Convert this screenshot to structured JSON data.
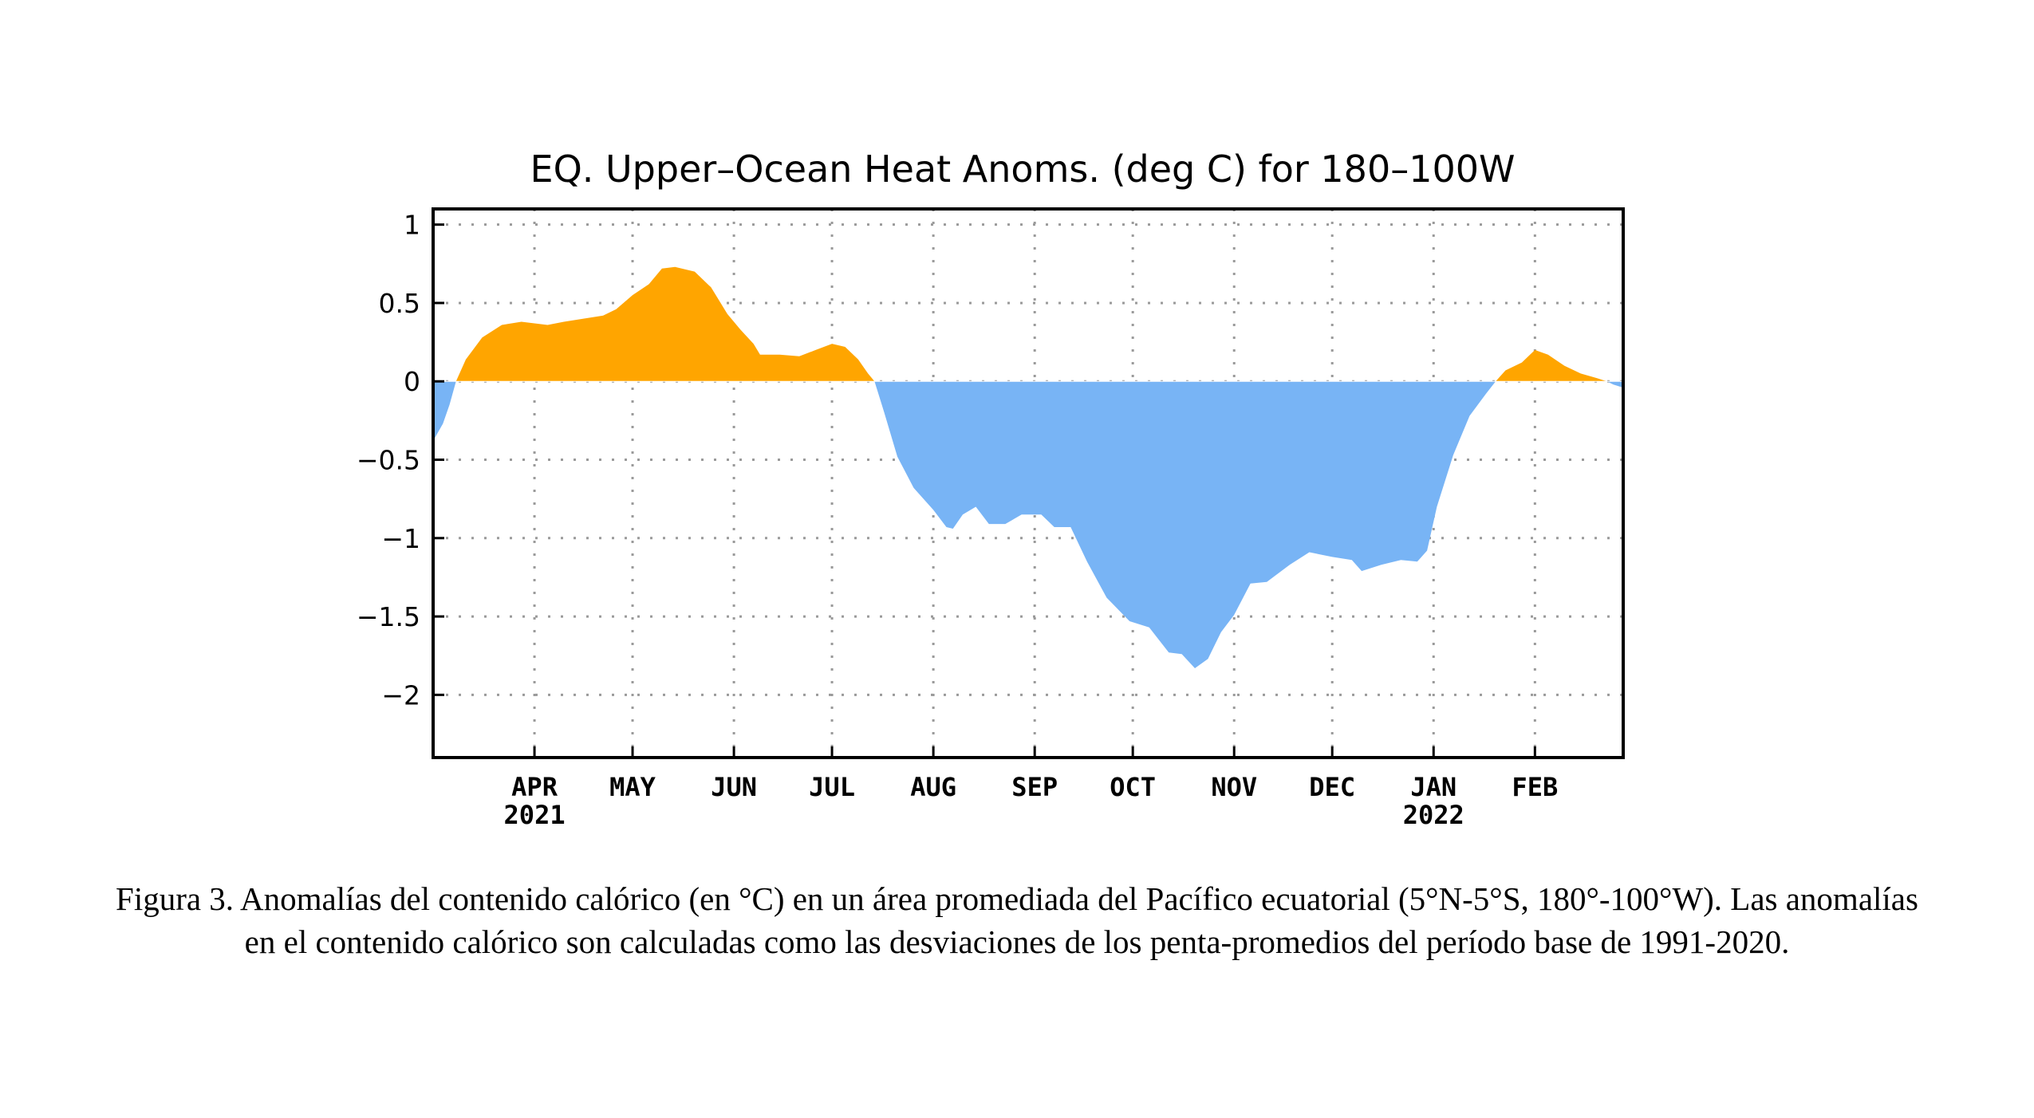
{
  "chart_data": {
    "type": "area",
    "title": "EQ. Upper–Ocean Heat Anoms. (deg C) for 180–100W",
    "xlabel": "",
    "ylabel": "",
    "ylim": [
      -2.4,
      1.1
    ],
    "y_ticks": [
      1,
      0.5,
      0,
      -0.5,
      -1,
      -1.5,
      -2
    ],
    "y_tick_labels": [
      "1",
      "0.5",
      "0",
      "−0.5",
      "−1",
      "−1.5",
      "−2"
    ],
    "xlim": [
      "2021-03-01",
      "2022-02-28"
    ],
    "x_ticks": [
      {
        "date": "2021-04-01",
        "label": "APR",
        "year": "2021"
      },
      {
        "date": "2021-05-01",
        "label": "MAY",
        "year": ""
      },
      {
        "date": "2021-06-01",
        "label": "JUN",
        "year": ""
      },
      {
        "date": "2021-07-01",
        "label": "JUL",
        "year": ""
      },
      {
        "date": "2021-08-01",
        "label": "AUG",
        "year": ""
      },
      {
        "date": "2021-09-01",
        "label": "SEP",
        "year": ""
      },
      {
        "date": "2021-10-01",
        "label": "OCT",
        "year": ""
      },
      {
        "date": "2021-11-01",
        "label": "NOV",
        "year": ""
      },
      {
        "date": "2021-12-01",
        "label": "DEC",
        "year": ""
      },
      {
        "date": "2022-01-01",
        "label": "JAN",
        "year": "2022"
      },
      {
        "date": "2022-02-01",
        "label": "FEB",
        "year": ""
      }
    ],
    "grid": true,
    "positive_color": "#ffa500",
    "negative_color": "#78b4f5",
    "points": [
      {
        "x": "2021-03-01",
        "y": -0.38
      },
      {
        "x": "2021-03-04",
        "y": -0.27
      },
      {
        "x": "2021-03-06",
        "y": -0.15
      },
      {
        "x": "2021-03-08",
        "y": 0.0
      },
      {
        "x": "2021-03-11",
        "y": 0.14
      },
      {
        "x": "2021-03-16",
        "y": 0.28
      },
      {
        "x": "2021-03-22",
        "y": 0.36
      },
      {
        "x": "2021-03-28",
        "y": 0.38
      },
      {
        "x": "2021-04-01",
        "y": 0.37
      },
      {
        "x": "2021-04-05",
        "y": 0.36
      },
      {
        "x": "2021-04-10",
        "y": 0.38
      },
      {
        "x": "2021-04-16",
        "y": 0.4
      },
      {
        "x": "2021-04-22",
        "y": 0.42
      },
      {
        "x": "2021-04-26",
        "y": 0.46
      },
      {
        "x": "2021-05-01",
        "y": 0.55
      },
      {
        "x": "2021-05-06",
        "y": 0.62
      },
      {
        "x": "2021-05-10",
        "y": 0.72
      },
      {
        "x": "2021-05-14",
        "y": 0.73
      },
      {
        "x": "2021-05-20",
        "y": 0.7
      },
      {
        "x": "2021-05-25",
        "y": 0.6
      },
      {
        "x": "2021-05-30",
        "y": 0.43
      },
      {
        "x": "2021-06-03",
        "y": 0.33
      },
      {
        "x": "2021-06-07",
        "y": 0.24
      },
      {
        "x": "2021-06-09",
        "y": 0.17
      },
      {
        "x": "2021-06-15",
        "y": 0.17
      },
      {
        "x": "2021-06-21",
        "y": 0.16
      },
      {
        "x": "2021-06-26",
        "y": 0.2
      },
      {
        "x": "2021-07-01",
        "y": 0.24
      },
      {
        "x": "2021-07-05",
        "y": 0.22
      },
      {
        "x": "2021-07-09",
        "y": 0.14
      },
      {
        "x": "2021-07-12",
        "y": 0.05
      },
      {
        "x": "2021-07-14",
        "y": 0.0
      },
      {
        "x": "2021-07-17",
        "y": -0.2
      },
      {
        "x": "2021-07-21",
        "y": -0.48
      },
      {
        "x": "2021-07-26",
        "y": -0.68
      },
      {
        "x": "2021-08-01",
        "y": -0.82
      },
      {
        "x": "2021-08-05",
        "y": -0.93
      },
      {
        "x": "2021-08-07",
        "y": -0.94
      },
      {
        "x": "2021-08-10",
        "y": -0.85
      },
      {
        "x": "2021-08-14",
        "y": -0.8
      },
      {
        "x": "2021-08-18",
        "y": -0.91
      },
      {
        "x": "2021-08-23",
        "y": -0.91
      },
      {
        "x": "2021-08-28",
        "y": -0.85
      },
      {
        "x": "2021-09-03",
        "y": -0.85
      },
      {
        "x": "2021-09-07",
        "y": -0.93
      },
      {
        "x": "2021-09-12",
        "y": -0.93
      },
      {
        "x": "2021-09-17",
        "y": -1.15
      },
      {
        "x": "2021-09-23",
        "y": -1.38
      },
      {
        "x": "2021-09-30",
        "y": -1.53
      },
      {
        "x": "2021-10-06",
        "y": -1.57
      },
      {
        "x": "2021-10-12",
        "y": -1.73
      },
      {
        "x": "2021-10-16",
        "y": -1.74
      },
      {
        "x": "2021-10-20",
        "y": -1.83
      },
      {
        "x": "2021-10-24",
        "y": -1.77
      },
      {
        "x": "2021-10-28",
        "y": -1.6
      },
      {
        "x": "2021-11-01",
        "y": -1.49
      },
      {
        "x": "2021-11-06",
        "y": -1.29
      },
      {
        "x": "2021-11-11",
        "y": -1.28
      },
      {
        "x": "2021-11-18",
        "y": -1.17
      },
      {
        "x": "2021-11-24",
        "y": -1.09
      },
      {
        "x": "2021-12-01",
        "y": -1.12
      },
      {
        "x": "2021-12-07",
        "y": -1.14
      },
      {
        "x": "2021-12-10",
        "y": -1.21
      },
      {
        "x": "2021-12-16",
        "y": -1.17
      },
      {
        "x": "2021-12-22",
        "y": -1.14
      },
      {
        "x": "2021-12-27",
        "y": -1.15
      },
      {
        "x": "2021-12-30",
        "y": -1.08
      },
      {
        "x": "2022-01-02",
        "y": -0.8
      },
      {
        "x": "2022-01-07",
        "y": -0.47
      },
      {
        "x": "2022-01-12",
        "y": -0.22
      },
      {
        "x": "2022-01-17",
        "y": -0.08
      },
      {
        "x": "2022-01-20",
        "y": 0.0
      },
      {
        "x": "2022-01-23",
        "y": 0.07
      },
      {
        "x": "2022-01-28",
        "y": 0.12
      },
      {
        "x": "2022-02-01",
        "y": 0.2
      },
      {
        "x": "2022-02-05",
        "y": 0.17
      },
      {
        "x": "2022-02-10",
        "y": 0.1
      },
      {
        "x": "2022-02-15",
        "y": 0.05
      },
      {
        "x": "2022-02-20",
        "y": 0.02
      },
      {
        "x": "2022-02-23",
        "y": 0.0
      },
      {
        "x": "2022-02-25",
        "y": -0.02
      },
      {
        "x": "2022-02-28",
        "y": -0.04
      }
    ]
  },
  "caption": {
    "text": "Figura 3. Anomalías del contenido calórico (en °C) en un área promediada del Pacífico ecuatorial (5°N-5°S, 180°-100°W). Las anomalías en el contenido calórico son calculadas como las desviaciones de los penta-promedios del período base de 1991-2020."
  }
}
